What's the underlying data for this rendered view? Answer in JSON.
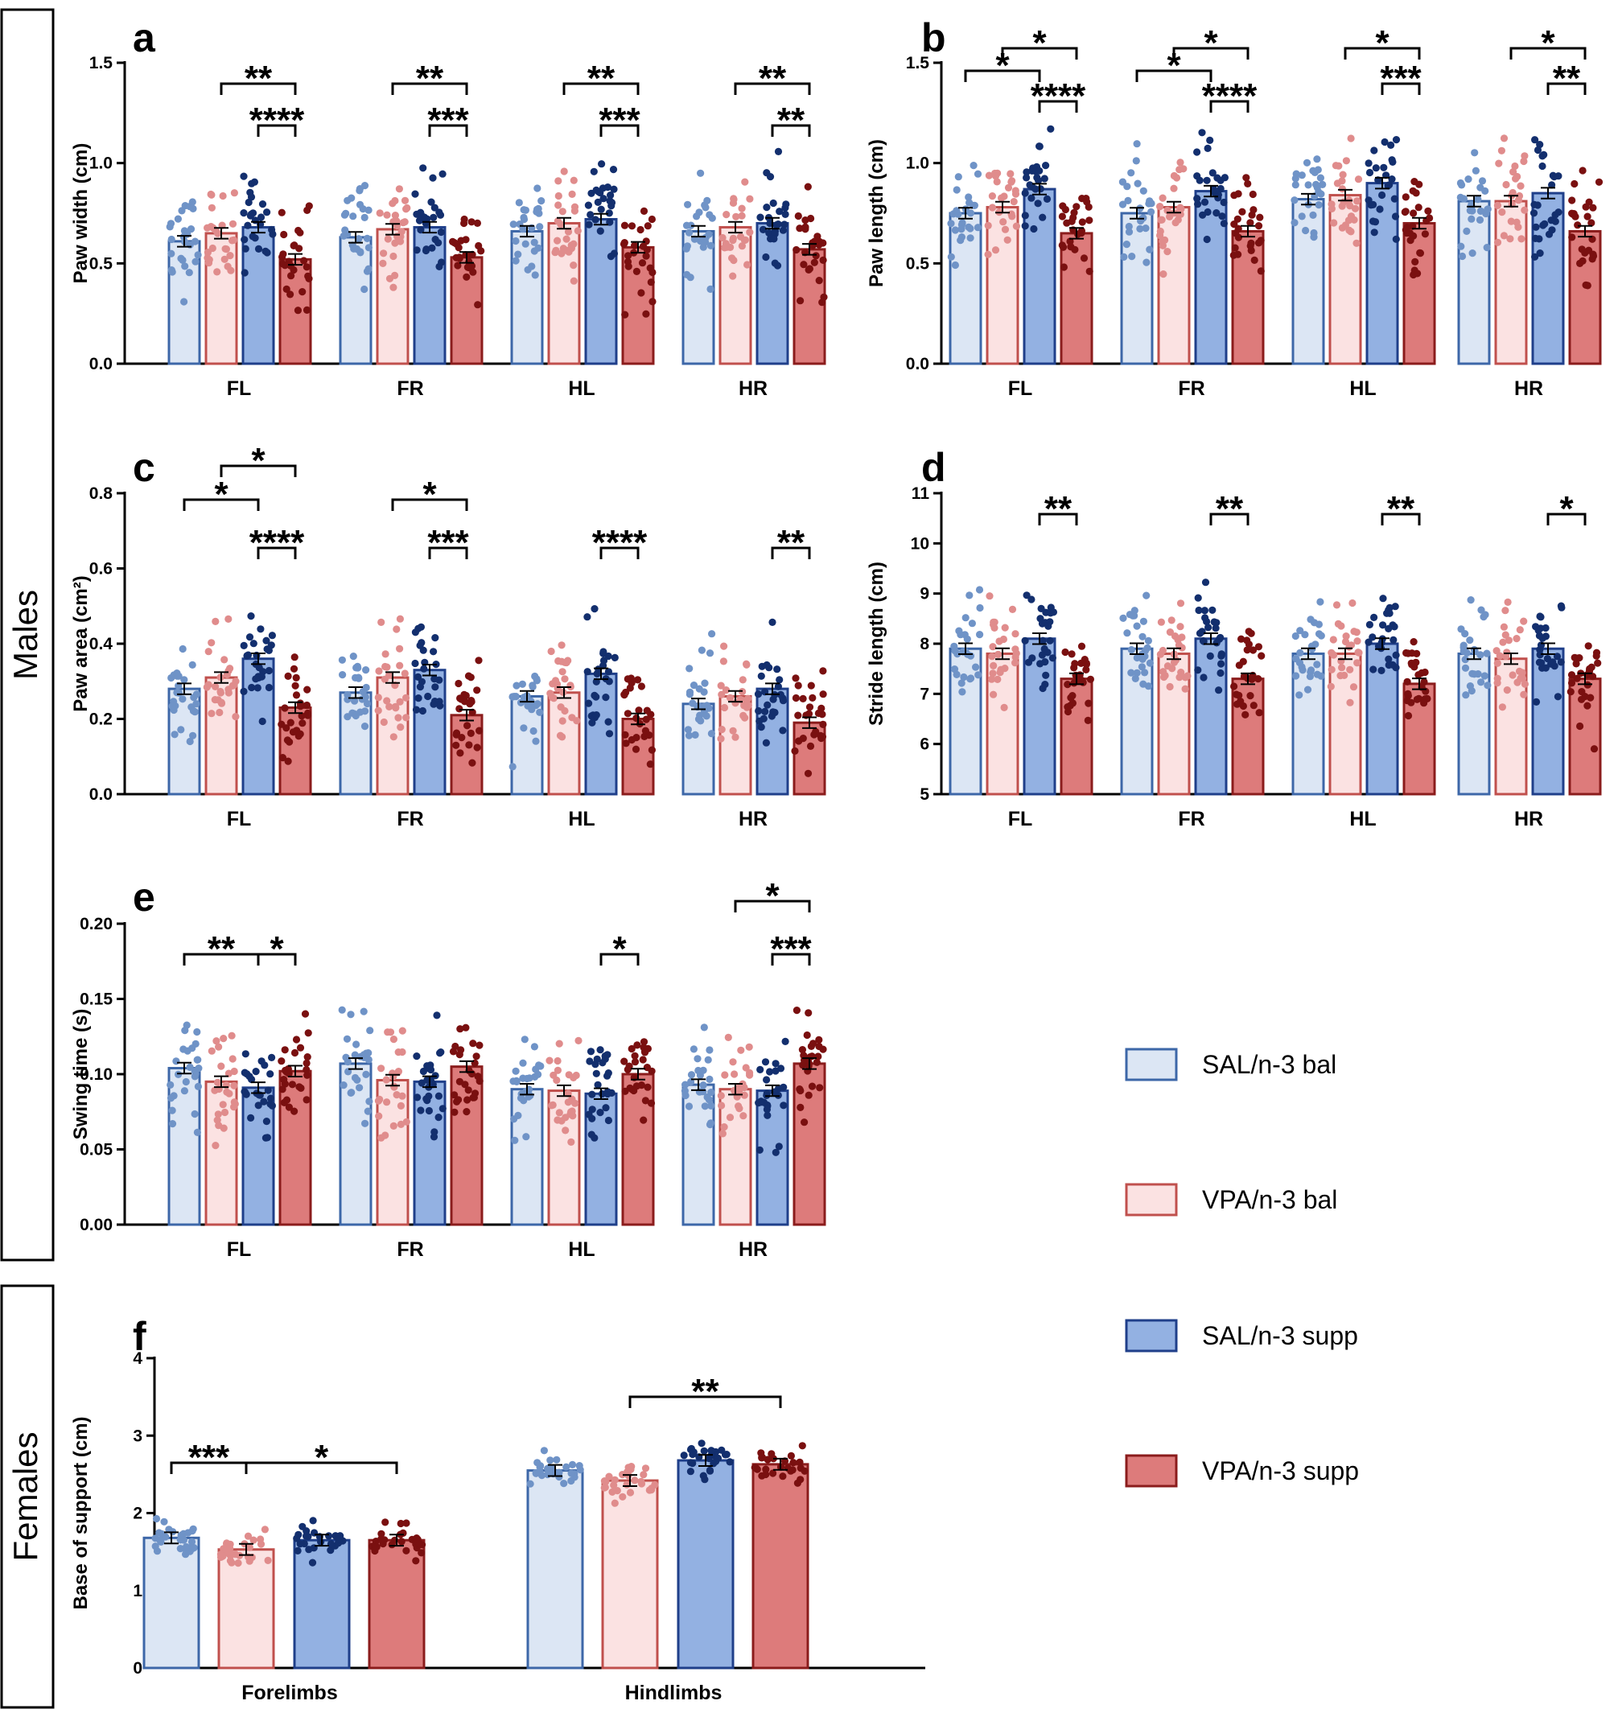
{
  "group_labels": {
    "males": "Males",
    "females": "Females"
  },
  "legend": [
    {
      "label": "SAL/n-3 bal",
      "fill": "#dce6f4",
      "stroke": "#3d67a8",
      "dot": "#6f93c7"
    },
    {
      "label": "VPA/n-3 bal",
      "fill": "#fbe2e2",
      "stroke": "#c0504d",
      "dot": "#e08c8c"
    },
    {
      "label": "SAL/n-3 supp",
      "fill": "#93b1e2",
      "stroke": "#1f3f8a",
      "dot": "#132f6e"
    },
    {
      "label": "VPA/n-3 supp",
      "fill": "#dd7b7b",
      "stroke": "#8b1c1c",
      "dot": "#7a1010"
    }
  ],
  "chart_data": [
    {
      "id": "a",
      "letter": "a",
      "type": "bar",
      "ylabel": "Paw width (cm)",
      "ylim": [
        0,
        1.5
      ],
      "yticks": [
        0,
        0.5,
        1.0,
        1.5
      ],
      "ytick_labels": [
        "0.0",
        "0.5",
        "1.0",
        "1.5"
      ],
      "categories": [
        "FL",
        "FR",
        "HL",
        "HR"
      ],
      "series": [
        {
          "name": "SAL/n-3 bal",
          "values": [
            0.61,
            0.63,
            0.66,
            0.66
          ]
        },
        {
          "name": "VPA/n-3 bal",
          "values": [
            0.65,
            0.67,
            0.7,
            0.68
          ]
        },
        {
          "name": "SAL/n-3 supp",
          "values": [
            0.68,
            0.68,
            0.72,
            0.7
          ]
        },
        {
          "name": "VPA/n-3 supp",
          "values": [
            0.52,
            0.53,
            0.58,
            0.57
          ]
        }
      ],
      "annotations": [
        {
          "category": 0,
          "from": 1,
          "to": 3,
          "level": 0,
          "text": "**"
        },
        {
          "category": 0,
          "from": 2,
          "to": 3,
          "level": 1,
          "text": "****"
        },
        {
          "category": 1,
          "from": 1,
          "to": 3,
          "level": 0,
          "text": "**"
        },
        {
          "category": 1,
          "from": 2,
          "to": 3,
          "level": 1,
          "text": "***"
        },
        {
          "category": 2,
          "from": 1,
          "to": 3,
          "level": 0,
          "text": "**"
        },
        {
          "category": 2,
          "from": 2,
          "to": 3,
          "level": 1,
          "text": "***"
        },
        {
          "category": 3,
          "from": 1,
          "to": 3,
          "level": 0,
          "text": "**"
        },
        {
          "category": 3,
          "from": 2,
          "to": 3,
          "level": 1,
          "text": "**"
        }
      ]
    },
    {
      "id": "b",
      "letter": "b",
      "type": "bar",
      "ylabel": "Paw length (cm)",
      "ylim": [
        0,
        1.5
      ],
      "yticks": [
        0,
        0.5,
        1.0,
        1.5
      ],
      "ytick_labels": [
        "0.0",
        "0.5",
        "1.0",
        "1.5"
      ],
      "categories": [
        "FL",
        "FR",
        "HL",
        "HR"
      ],
      "series": [
        {
          "name": "SAL/n-3 bal",
          "values": [
            0.75,
            0.75,
            0.82,
            0.81
          ]
        },
        {
          "name": "VPA/n-3 bal",
          "values": [
            0.78,
            0.78,
            0.84,
            0.81
          ]
        },
        {
          "name": "SAL/n-3 supp",
          "values": [
            0.87,
            0.86,
            0.9,
            0.85
          ]
        },
        {
          "name": "VPA/n-3 supp",
          "values": [
            0.65,
            0.66,
            0.7,
            0.66
          ]
        }
      ],
      "annotations": [
        {
          "category": 0,
          "from": 0,
          "to": 2,
          "level": 0,
          "text": "*"
        },
        {
          "category": 0,
          "from": 1,
          "to": 3,
          "level": 1,
          "text": "*"
        },
        {
          "category": 0,
          "from": 2,
          "to": 3,
          "level": 2,
          "text": "****"
        },
        {
          "category": 1,
          "from": 0,
          "to": 2,
          "level": 0,
          "text": "*"
        },
        {
          "category": 1,
          "from": 1,
          "to": 3,
          "level": 1,
          "text": "*"
        },
        {
          "category": 1,
          "from": 2,
          "to": 3,
          "level": 2,
          "text": "****"
        },
        {
          "category": 2,
          "from": 1,
          "to": 3,
          "level": 0,
          "text": "*"
        },
        {
          "category": 2,
          "from": 2,
          "to": 3,
          "level": 1,
          "text": "***"
        },
        {
          "category": 3,
          "from": 1,
          "to": 3,
          "level": 0,
          "text": "*"
        },
        {
          "category": 3,
          "from": 2,
          "to": 3,
          "level": 1,
          "text": "**"
        }
      ]
    },
    {
      "id": "c",
      "letter": "c",
      "type": "bar",
      "ylabel": "Paw area (cm²)",
      "ylim": [
        0,
        0.8
      ],
      "yticks": [
        0,
        0.2,
        0.4,
        0.6,
        0.8
      ],
      "ytick_labels": [
        "0.0",
        "0.2",
        "0.4",
        "0.6",
        "0.8"
      ],
      "categories": [
        "FL",
        "FR",
        "HL",
        "HR"
      ],
      "series": [
        {
          "name": "SAL/n-3 bal",
          "values": [
            0.28,
            0.27,
            0.26,
            0.24
          ]
        },
        {
          "name": "VPA/n-3 bal",
          "values": [
            0.31,
            0.31,
            0.27,
            0.26
          ]
        },
        {
          "name": "SAL/n-3 supp",
          "values": [
            0.36,
            0.33,
            0.32,
            0.28
          ]
        },
        {
          "name": "VPA/n-3 supp",
          "values": [
            0.23,
            0.21,
            0.2,
            0.19
          ]
        }
      ],
      "annotations": [
        {
          "category": 0,
          "from": 0,
          "to": 2,
          "level": 0,
          "text": "*"
        },
        {
          "category": 0,
          "from": 1,
          "to": 3,
          "level": 1,
          "text": "*"
        },
        {
          "category": 0,
          "from": 2,
          "to": 3,
          "level": 2,
          "text": "****"
        },
        {
          "category": 1,
          "from": 1,
          "to": 3,
          "level": 0,
          "text": "*"
        },
        {
          "category": 1,
          "from": 2,
          "to": 3,
          "level": 1,
          "text": "***"
        },
        {
          "category": 2,
          "from": 2,
          "to": 3,
          "level": 1,
          "text": "****"
        },
        {
          "category": 3,
          "from": 2,
          "to": 3,
          "level": 1,
          "text": "**"
        }
      ]
    },
    {
      "id": "d",
      "letter": "d",
      "type": "bar",
      "ylabel": "Stride length (cm)",
      "ylim": [
        5,
        11
      ],
      "yticks": [
        5,
        6,
        7,
        8,
        9,
        10,
        11
      ],
      "ytick_labels": [
        "5",
        "6",
        "7",
        "8",
        "9",
        "10",
        "11"
      ],
      "categories": [
        "FL",
        "FR",
        "HL",
        "HR"
      ],
      "series": [
        {
          "name": "SAL/n-3 bal",
          "values": [
            7.9,
            7.9,
            7.8,
            7.8
          ]
        },
        {
          "name": "VPA/n-3 bal",
          "values": [
            7.8,
            7.8,
            7.8,
            7.7
          ]
        },
        {
          "name": "SAL/n-3 supp",
          "values": [
            8.1,
            8.1,
            8.0,
            7.9
          ]
        },
        {
          "name": "VPA/n-3 supp",
          "values": [
            7.3,
            7.3,
            7.2,
            7.3
          ]
        }
      ],
      "annotations": [
        {
          "category": 0,
          "from": 2,
          "to": 3,
          "level": 0,
          "text": "**"
        },
        {
          "category": 1,
          "from": 2,
          "to": 3,
          "level": 0,
          "text": "**"
        },
        {
          "category": 2,
          "from": 2,
          "to": 3,
          "level": 0,
          "text": "**"
        },
        {
          "category": 3,
          "from": 2,
          "to": 3,
          "level": 0,
          "text": "*"
        }
      ]
    },
    {
      "id": "e",
      "letter": "e",
      "type": "bar",
      "ylabel": "Swing time (s)",
      "ylim": [
        0,
        0.2
      ],
      "yticks": [
        0,
        0.05,
        0.1,
        0.15,
        0.2
      ],
      "ytick_labels": [
        "0.00",
        "0.05",
        "0.10",
        "0.15",
        "0.20"
      ],
      "categories": [
        "FL",
        "FR",
        "HL",
        "HR"
      ],
      "series": [
        {
          "name": "SAL/n-3 bal",
          "values": [
            0.104,
            0.107,
            0.09,
            0.093
          ]
        },
        {
          "name": "VPA/n-3 bal",
          "values": [
            0.095,
            0.096,
            0.089,
            0.09
          ]
        },
        {
          "name": "SAL/n-3 supp",
          "values": [
            0.091,
            0.095,
            0.087,
            0.089
          ]
        },
        {
          "name": "VPA/n-3 supp",
          "values": [
            0.102,
            0.105,
            0.1,
            0.107
          ]
        }
      ],
      "annotations": [
        {
          "category": 0,
          "from": 0,
          "to": 2,
          "level": 0,
          "text": "**"
        },
        {
          "category": 0,
          "from": 2,
          "to": 3,
          "level": 0,
          "text": "*"
        },
        {
          "category": 2,
          "from": 2,
          "to": 3,
          "level": 0,
          "text": "*"
        },
        {
          "category": 3,
          "from": 1,
          "to": 3,
          "level": 0,
          "text": "*"
        },
        {
          "category": 3,
          "from": 2,
          "to": 3,
          "level": 1,
          "text": "***"
        }
      ]
    },
    {
      "id": "f",
      "letter": "f",
      "type": "bar",
      "ylabel": "Base of support (cm)",
      "ylim": [
        0,
        4
      ],
      "yticks": [
        0,
        1,
        2,
        3,
        4
      ],
      "ytick_labels": [
        "0",
        "1",
        "2",
        "3",
        "4"
      ],
      "categories": [
        "Forelimbs",
        "Hindlimbs"
      ],
      "series": [
        {
          "name": "SAL/n-3 bal",
          "values": [
            1.68,
            2.55
          ]
        },
        {
          "name": "VPA/n-3 bal",
          "values": [
            1.53,
            2.42
          ]
        },
        {
          "name": "SAL/n-3 supp",
          "values": [
            1.65,
            2.68
          ]
        },
        {
          "name": "VPA/n-3 supp",
          "values": [
            1.65,
            2.63
          ]
        }
      ],
      "annotations": [
        {
          "category": 0,
          "from": 0,
          "to": 1,
          "level": 0,
          "text": "***"
        },
        {
          "category": 0,
          "from": 1,
          "to": 3,
          "level": 0,
          "text": "*"
        },
        {
          "category": 1,
          "from": 1,
          "to": 3,
          "level": 0,
          "text": "**"
        }
      ]
    }
  ]
}
